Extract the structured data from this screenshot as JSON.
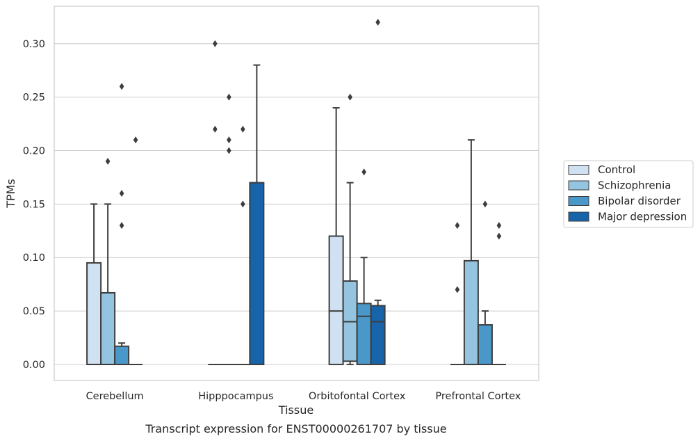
{
  "chart_data": {
    "type": "box",
    "xlabel": "Tissue",
    "ylabel": "TPMs",
    "caption": "Transcript expression for ENST00000261707 by tissue",
    "ylim": [
      -0.015,
      0.335
    ],
    "yticks": [
      "0.00",
      "0.05",
      "0.10",
      "0.15",
      "0.20",
      "0.25",
      "0.30"
    ],
    "ytick_values": [
      0.0,
      0.05,
      0.1,
      0.15,
      0.2,
      0.25,
      0.3
    ],
    "grid": "horizontal",
    "legend_position": "right",
    "categories": [
      "Cerebellum",
      "Hipppocampus",
      "Orbitofontal Cortex",
      "Prefrontal Cortex"
    ],
    "series": [
      {
        "name": "Control",
        "color": "#d0e1f2",
        "boxes": [
          {
            "q1": 0,
            "median": 0,
            "q3": 0.095,
            "whisker_low": 0,
            "whisker_high": 0.15,
            "outliers": []
          },
          {
            "q1": 0,
            "median": 0,
            "q3": 0,
            "whisker_low": 0,
            "whisker_high": 0,
            "outliers": [
              0.3,
              0.22
            ]
          },
          {
            "q1": 0,
            "median": 0.05,
            "q3": 0.12,
            "whisker_low": 0,
            "whisker_high": 0.24,
            "outliers": []
          },
          {
            "q1": 0,
            "median": 0,
            "q3": 0,
            "whisker_low": 0,
            "whisker_high": 0,
            "outliers": [
              0.13,
              0.07
            ]
          }
        ]
      },
      {
        "name": "Schizophrenia",
        "color": "#94c4df",
        "boxes": [
          {
            "q1": 0,
            "median": 0,
            "q3": 0.067,
            "whisker_low": 0,
            "whisker_high": 0.15,
            "outliers": [
              0.19
            ]
          },
          {
            "q1": 0,
            "median": 0,
            "q3": 0,
            "whisker_low": 0,
            "whisker_high": 0,
            "outliers": [
              0.25,
              0.21,
              0.2
            ]
          },
          {
            "q1": 0.003,
            "median": 0.04,
            "q3": 0.078,
            "whisker_low": 0,
            "whisker_high": 0.17,
            "outliers": [
              0.25
            ]
          },
          {
            "q1": 0,
            "median": 0,
            "q3": 0.097,
            "whisker_low": 0,
            "whisker_high": 0.21,
            "outliers": []
          }
        ]
      },
      {
        "name": "Bipolar disorder",
        "color": "#4a98c9",
        "boxes": [
          {
            "q1": 0,
            "median": 0,
            "q3": 0.017,
            "whisker_low": 0,
            "whisker_high": 0.02,
            "outliers": [
              0.26,
              0.16,
              0.13
            ]
          },
          {
            "q1": 0,
            "median": 0,
            "q3": 0,
            "whisker_low": 0,
            "whisker_high": 0,
            "outliers": [
              0.22,
              0.15
            ]
          },
          {
            "q1": 0,
            "median": 0.045,
            "q3": 0.057,
            "whisker_low": 0,
            "whisker_high": 0.1,
            "outliers": [
              0.18
            ]
          },
          {
            "q1": 0,
            "median": 0,
            "q3": 0.037,
            "whisker_low": 0,
            "whisker_high": 0.05,
            "outliers": [
              0.15
            ]
          }
        ]
      },
      {
        "name": "Major depression",
        "color": "#1764ab",
        "boxes": [
          {
            "q1": 0,
            "median": 0,
            "q3": 0,
            "whisker_low": 0,
            "whisker_high": 0,
            "outliers": [
              0.21
            ]
          },
          {
            "q1": 0,
            "median": 0,
            "q3": 0.17,
            "whisker_low": 0,
            "whisker_high": 0.28,
            "outliers": []
          },
          {
            "q1": 0,
            "median": 0.04,
            "q3": 0.055,
            "whisker_low": 0,
            "whisker_high": 0.06,
            "outliers": [
              0.32
            ]
          },
          {
            "q1": 0,
            "median": 0,
            "q3": 0,
            "whisker_low": 0,
            "whisker_high": 0,
            "outliers": [
              0.13,
              0.12
            ]
          }
        ]
      }
    ]
  }
}
